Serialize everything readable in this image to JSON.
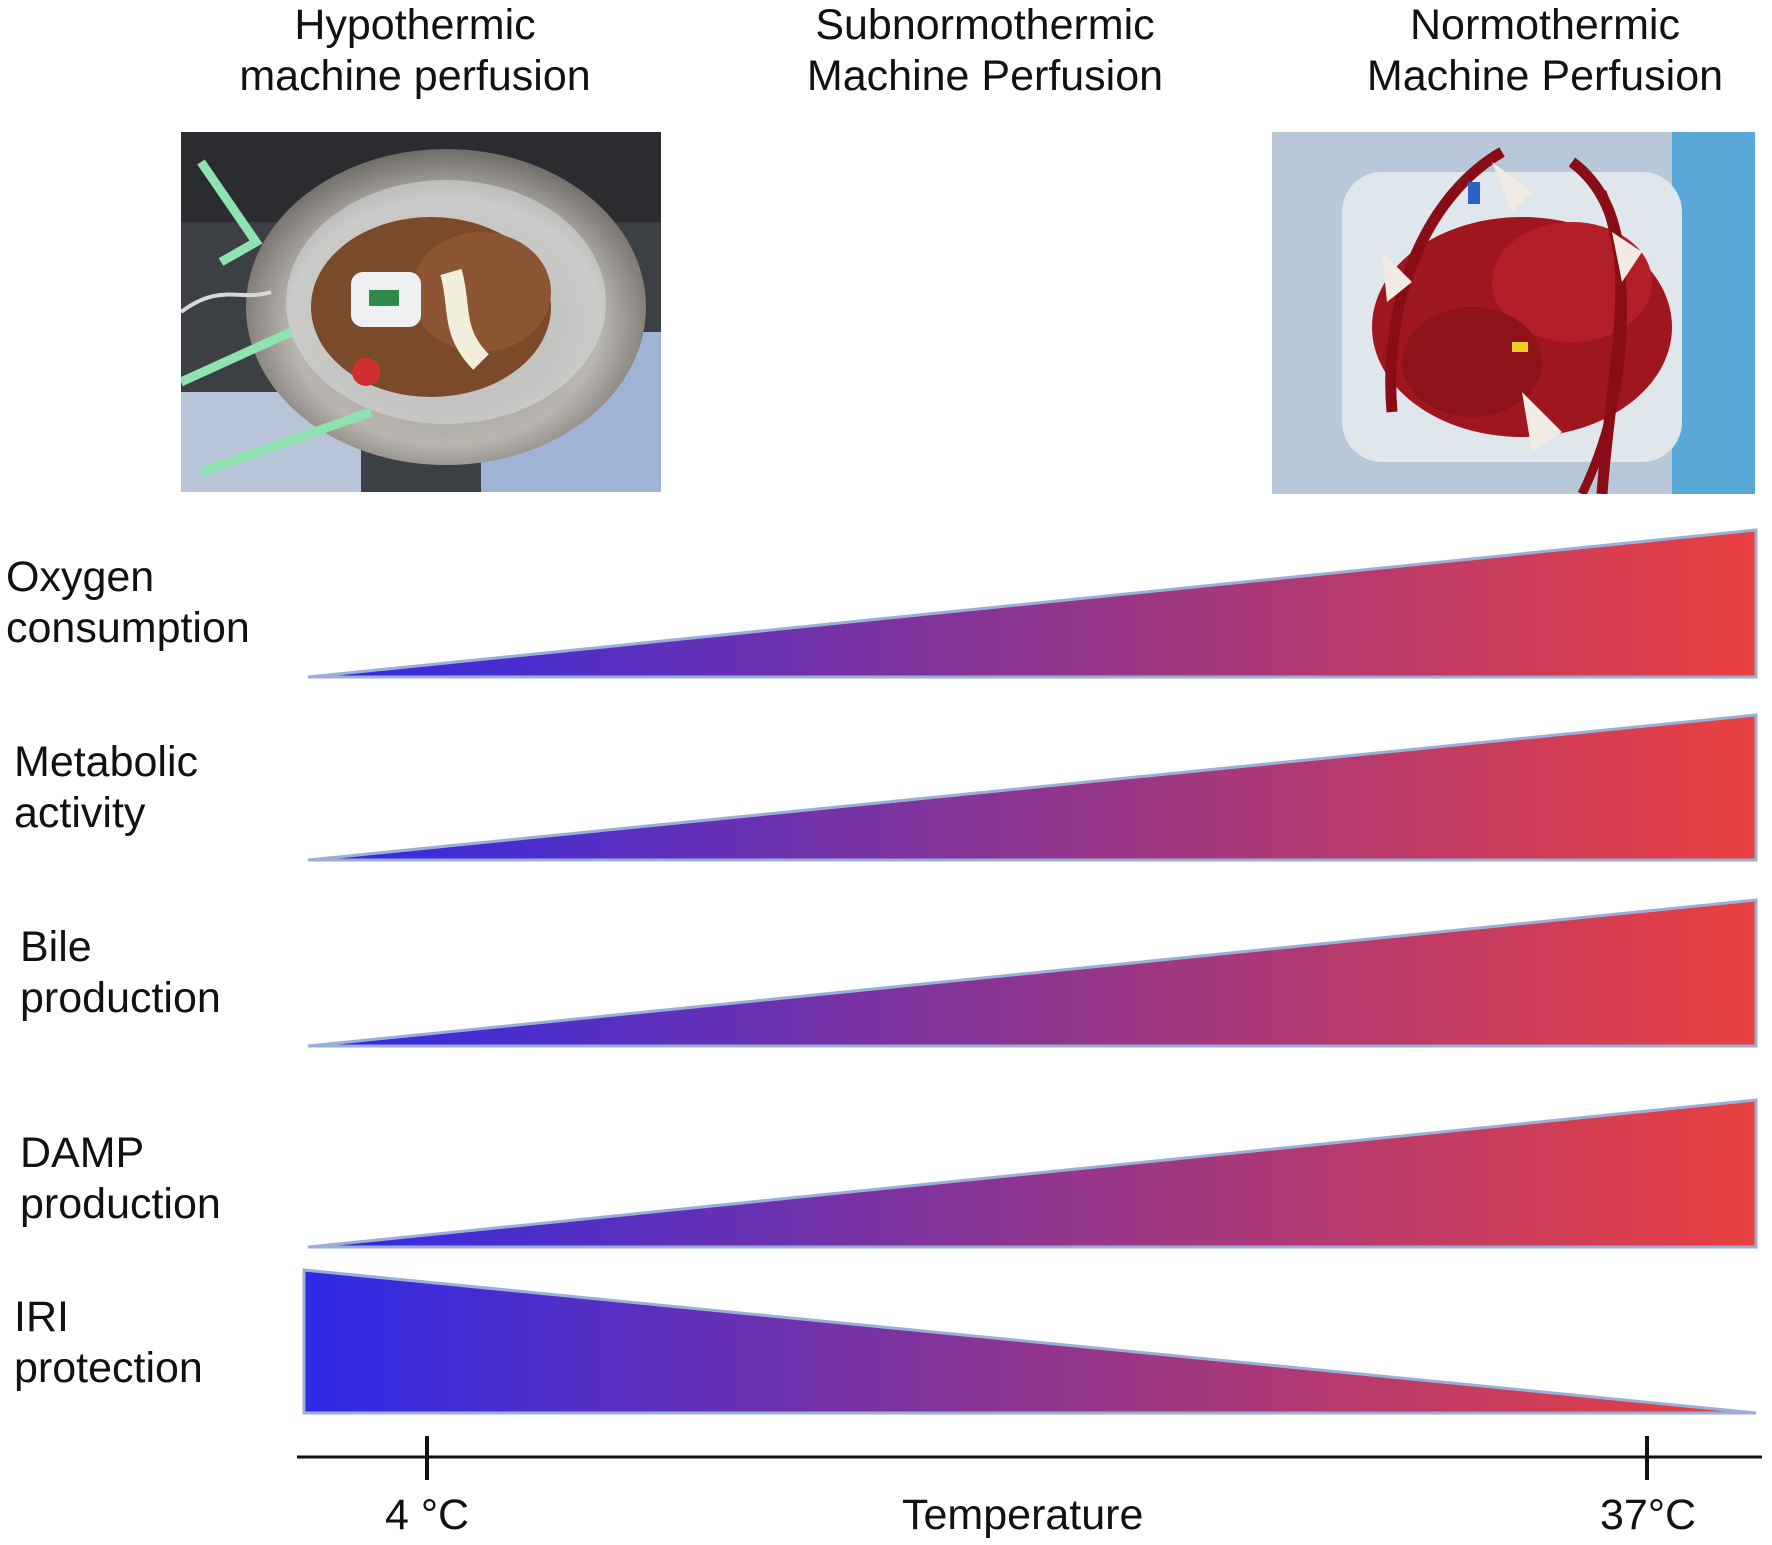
{
  "headers": {
    "hypothermic": {
      "line1": "Hypothermic",
      "line2": "machine perfusion"
    },
    "subnormothermic": {
      "line1": "Subnormothermic",
      "line2": "Machine Perfusion"
    },
    "normothermic": {
      "line1": "Normothermic",
      "line2": "Machine Perfusion"
    }
  },
  "rows": [
    {
      "line1": "Oxygen",
      "line2": "consumption",
      "trend": "increasing"
    },
    {
      "line1": "Metabolic",
      "line2": "activity",
      "trend": "increasing"
    },
    {
      "line1": "Bile",
      "line2": "production",
      "trend": "increasing"
    },
    {
      "line1": "DAMP",
      "line2": "production",
      "trend": "increasing"
    },
    {
      "line1": "IRI",
      "line2": "protection",
      "trend": "decreasing"
    }
  ],
  "axis": {
    "title": "Temperature",
    "tick_low": "4 °C",
    "tick_high": "37°C"
  },
  "colors": {
    "cold": "#2e2ae6",
    "mid": "#8e3590",
    "warm": "#ea4040",
    "outline": "#9aaed6"
  }
}
